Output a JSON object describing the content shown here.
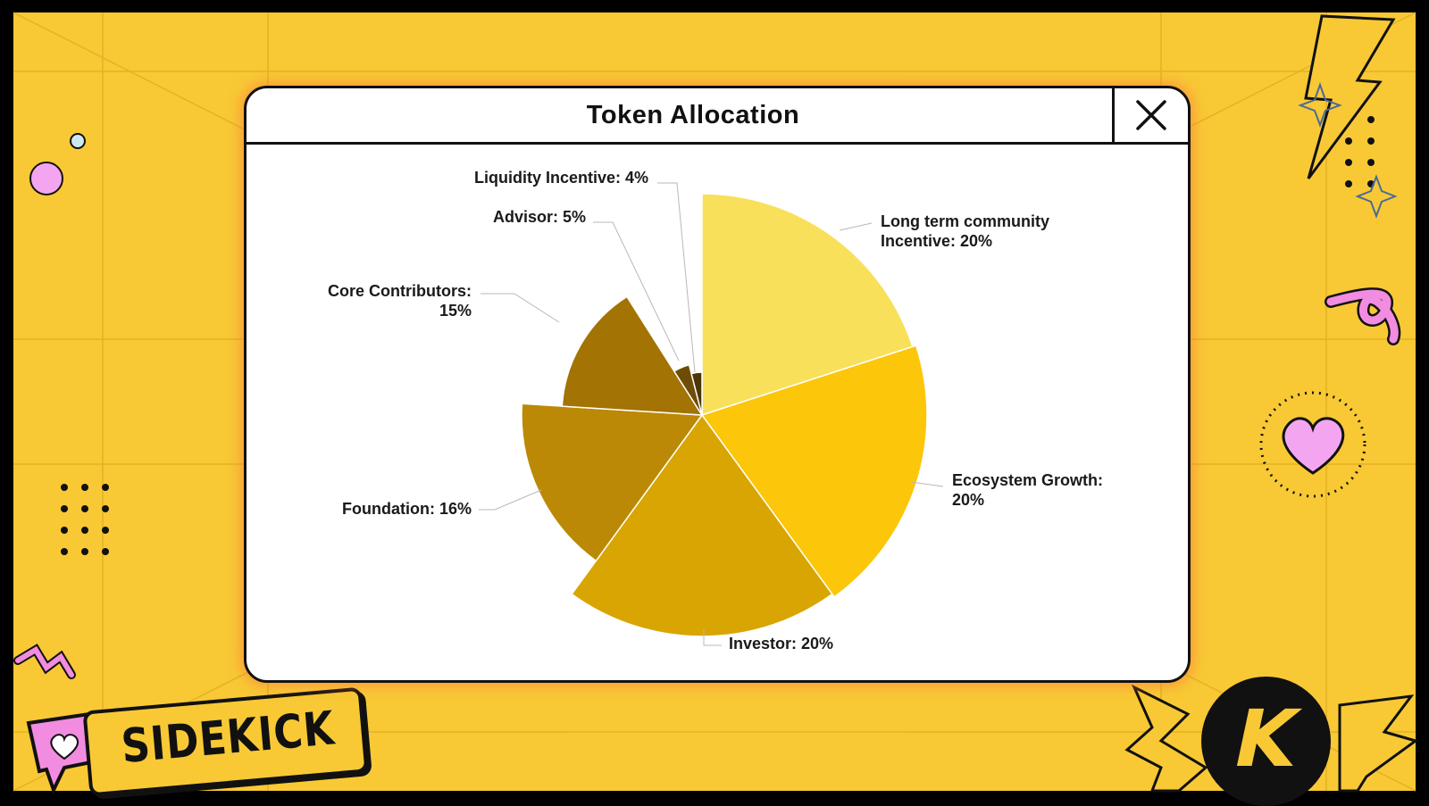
{
  "window": {
    "title": "Token Allocation",
    "close_icon": "close-icon"
  },
  "branding": {
    "name": "SIDEKICK",
    "logo_letter": "K"
  },
  "colors": {
    "background": "#f8c935",
    "accent_pink": "#f28ce0",
    "window_glow": "#ff7a3c"
  },
  "chart_data": {
    "type": "pie",
    "title": "Token Allocation",
    "slices": [
      {
        "label": "Long term community Incentive",
        "value": 20,
        "label_lines": [
          "Long term community",
          "Incentive: 20%"
        ],
        "color": "#f9e05a"
      },
      {
        "label": "Ecosystem Growth",
        "value": 20,
        "label_lines": [
          "Ecosystem Growth:",
          "20%"
        ],
        "color": "#fcc60a"
      },
      {
        "label": "Investor",
        "value": 20,
        "label_lines": [
          "Investor: 20%"
        ],
        "color": "#d9a502"
      },
      {
        "label": "Foundation",
        "value": 16,
        "label_lines": [
          "Foundation: 16%"
        ],
        "color": "#bb8906"
      },
      {
        "label": "Core Contributors",
        "value": 15,
        "label_lines": [
          "Core Contributors:",
          "15%"
        ],
        "color": "#a37303"
      },
      {
        "label": "Advisor",
        "value": 5,
        "label_lines": [
          "Advisor: 5%"
        ],
        "color": "#6f4c05"
      },
      {
        "label": "Liquidity Incentive",
        "value": 4,
        "label_lines": [
          "Liquidity Incentive: 4%"
        ],
        "color": "#4d3504"
      }
    ]
  }
}
